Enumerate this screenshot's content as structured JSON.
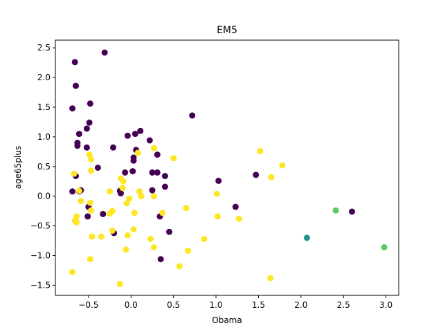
{
  "chart_data": {
    "type": "scatter",
    "title": "EM5",
    "xlabel": "Obama",
    "ylabel": "age65plus",
    "xlim": [
      -0.89,
      3.15
    ],
    "ylim": [
      -1.67,
      2.63
    ],
    "xticks": [
      -0.5,
      0.0,
      0.5,
      1.0,
      1.5,
      2.0,
      2.5,
      3.0
    ],
    "xtick_labels": [
      "−0.5",
      "0.0",
      "0.5",
      "1.0",
      "1.5",
      "2.0",
      "2.5",
      "3.0"
    ],
    "yticks": [
      -1.5,
      -1.0,
      -0.5,
      0.0,
      0.5,
      1.0,
      1.5,
      2.0,
      2.5
    ],
    "ytick_labels": [
      "−1.5",
      "−1.0",
      "−0.5",
      "0.0",
      "0.5",
      "1.0",
      "1.5",
      "2.0",
      "2.5"
    ],
    "grid": false,
    "legend": "none",
    "series": [
      {
        "color": "#440154",
        "points": [
          [
            -0.66,
            2.26
          ],
          [
            -0.31,
            2.42
          ],
          [
            -0.65,
            1.86
          ],
          [
            -0.69,
            1.48
          ],
          [
            -0.48,
            1.56
          ],
          [
            -0.49,
            1.24
          ],
          [
            -0.52,
            1.14
          ],
          [
            -0.61,
            1.05
          ],
          [
            -0.63,
            0.9
          ],
          [
            -0.63,
            0.85
          ],
          [
            -0.52,
            0.82
          ],
          [
            -0.21,
            0.82
          ],
          [
            -0.04,
            1.02
          ],
          [
            0.05,
            1.05
          ],
          [
            0.11,
            1.1
          ],
          [
            0.22,
            0.94
          ],
          [
            0.72,
            1.36
          ],
          [
            0.06,
            0.78
          ],
          [
            0.03,
            0.65
          ],
          [
            0.03,
            0.6
          ],
          [
            0.31,
            0.7
          ],
          [
            -0.39,
            0.48
          ],
          [
            -0.07,
            0.4
          ],
          [
            0.02,
            0.42
          ],
          [
            0.25,
            0.4
          ],
          [
            0.31,
            0.4
          ],
          [
            0.4,
            0.34
          ],
          [
            -0.65,
            0.34
          ],
          [
            -0.69,
            0.08
          ],
          [
            -0.59,
            0.1
          ],
          [
            -0.61,
            0.08
          ],
          [
            -0.13,
            0.09
          ],
          [
            -0.12,
            0.05
          ],
          [
            0.25,
            0.1
          ],
          [
            0.4,
            0.16
          ],
          [
            1.03,
            0.26
          ],
          [
            1.47,
            0.36
          ],
          [
            -0.5,
            -0.18
          ],
          [
            -0.51,
            -0.34
          ],
          [
            -0.33,
            -0.3
          ],
          [
            -0.2,
            -0.62
          ],
          [
            0.34,
            -0.34
          ],
          [
            0.35,
            -1.06
          ],
          [
            0.45,
            -0.6
          ],
          [
            1.23,
            -0.18
          ],
          [
            2.6,
            -0.26
          ]
        ]
      },
      {
        "color": "#21918c",
        "points": [
          [
            2.07,
            -0.7
          ]
        ]
      },
      {
        "color": "#5ec962",
        "points": [
          [
            2.41,
            -0.24
          ],
          [
            2.98,
            -0.86
          ]
        ]
      },
      {
        "color": "#fde725",
        "points": [
          [
            -0.49,
            0.7
          ],
          [
            -0.47,
            0.62
          ],
          [
            -0.47,
            0.43
          ],
          [
            -0.67,
            0.38
          ],
          [
            -0.12,
            0.3
          ],
          [
            -0.09,
            0.25
          ],
          [
            -0.1,
            0.14
          ],
          [
            0.08,
            0.73
          ],
          [
            0.27,
            0.81
          ],
          [
            0.5,
            0.64
          ],
          [
            1.52,
            0.76
          ],
          [
            1.78,
            0.52
          ],
          [
            1.65,
            0.32
          ],
          [
            -0.25,
            0.08
          ],
          [
            0.1,
            0.08
          ],
          [
            0.12,
            0.0
          ],
          [
            -0.61,
            0.09
          ],
          [
            -0.59,
            -0.08
          ],
          [
            -0.48,
            -0.11
          ],
          [
            -0.05,
            -0.12
          ],
          [
            -0.02,
            -0.04
          ],
          [
            -0.47,
            -0.24
          ],
          [
            0.27,
            0.0
          ],
          [
            1.01,
            0.04
          ],
          [
            0.65,
            -0.2
          ],
          [
            0.37,
            -0.28
          ],
          [
            0.04,
            -0.28
          ],
          [
            -0.22,
            -0.25
          ],
          [
            -0.25,
            -0.29
          ],
          [
            -0.64,
            -0.34
          ],
          [
            -0.66,
            -0.41
          ],
          [
            -0.64,
            -0.44
          ],
          [
            -0.22,
            -0.58
          ],
          [
            -0.04,
            -0.66
          ],
          [
            0.03,
            -0.56
          ],
          [
            -0.46,
            -0.68
          ],
          [
            -0.35,
            -0.68
          ],
          [
            0.23,
            -0.72
          ],
          [
            0.86,
            -0.72
          ],
          [
            1.02,
            -0.34
          ],
          [
            1.27,
            -0.38
          ],
          [
            -0.06,
            -0.9
          ],
          [
            0.27,
            -0.86
          ],
          [
            0.67,
            -0.92
          ],
          [
            -0.48,
            -1.06
          ],
          [
            -0.69,
            -1.28
          ],
          [
            -0.13,
            -1.48
          ],
          [
            0.57,
            -1.18
          ],
          [
            1.64,
            -1.38
          ]
        ]
      }
    ]
  }
}
